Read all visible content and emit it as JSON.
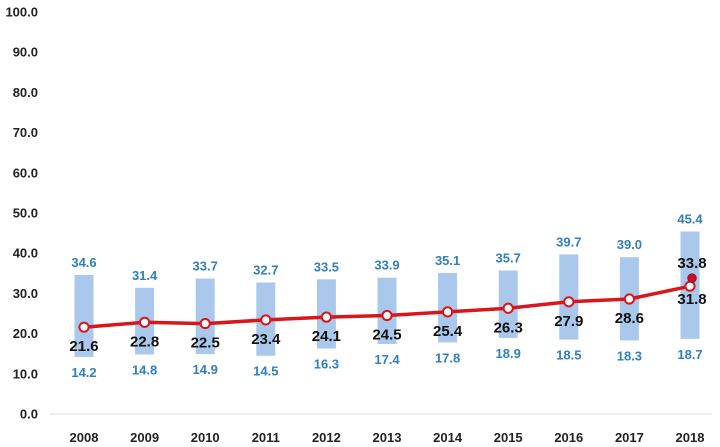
{
  "colors": {
    "range_bar": "#a9c8eb",
    "range_label": "#2f7fbf",
    "line": "#d8171c",
    "marker_fill": "#ffffff",
    "extra_marker": "#c8102e",
    "grid": "#ffffff",
    "text": "#111111"
  },
  "chart_data": {
    "type": "bar",
    "title": "",
    "xlabel": "",
    "ylabel": "",
    "ylim": [
      0,
      100
    ],
    "yticks": [
      "0.0",
      "10.0",
      "20.0",
      "30.0",
      "40.0",
      "50.0",
      "60.0",
      "70.0",
      "80.0",
      "90.0",
      "100.0"
    ],
    "grid": false,
    "categories": [
      "2008",
      "2009",
      "2010",
      "2011",
      "2012",
      "2013",
      "2014",
      "2015",
      "2016",
      "2017",
      "2018"
    ],
    "series": [
      {
        "kind": "range-bar",
        "high": [
          34.6,
          31.4,
          33.7,
          32.7,
          33.5,
          33.9,
          35.1,
          35.7,
          39.7,
          39.0,
          45.4
        ],
        "low": [
          14.2,
          14.8,
          14.9,
          14.5,
          16.3,
          17.4,
          17.8,
          18.9,
          18.5,
          18.3,
          18.7
        ],
        "high_labels": [
          "34.6",
          "31.4",
          "33.7",
          "32.7",
          "33.5",
          "33.9",
          "35.1",
          "35.7",
          "39.7",
          "39.0",
          "45.4"
        ],
        "low_labels": [
          "14.2",
          "14.8",
          "14.9",
          "14.5",
          "16.3",
          "17.4",
          "17.8",
          "18.9",
          "18.5",
          "18.3",
          "18.7"
        ]
      },
      {
        "kind": "line",
        "values": [
          21.6,
          22.8,
          22.5,
          23.4,
          24.1,
          24.5,
          25.4,
          26.3,
          27.9,
          28.6,
          31.8
        ],
        "labels": [
          "21.6",
          "22.8",
          "22.5",
          "23.4",
          "24.1",
          "24.5",
          "25.4",
          "26.3",
          "27.9",
          "28.6",
          "31.8"
        ]
      },
      {
        "kind": "point",
        "category": "2018",
        "value": 33.8,
        "label": "33.8"
      }
    ]
  }
}
